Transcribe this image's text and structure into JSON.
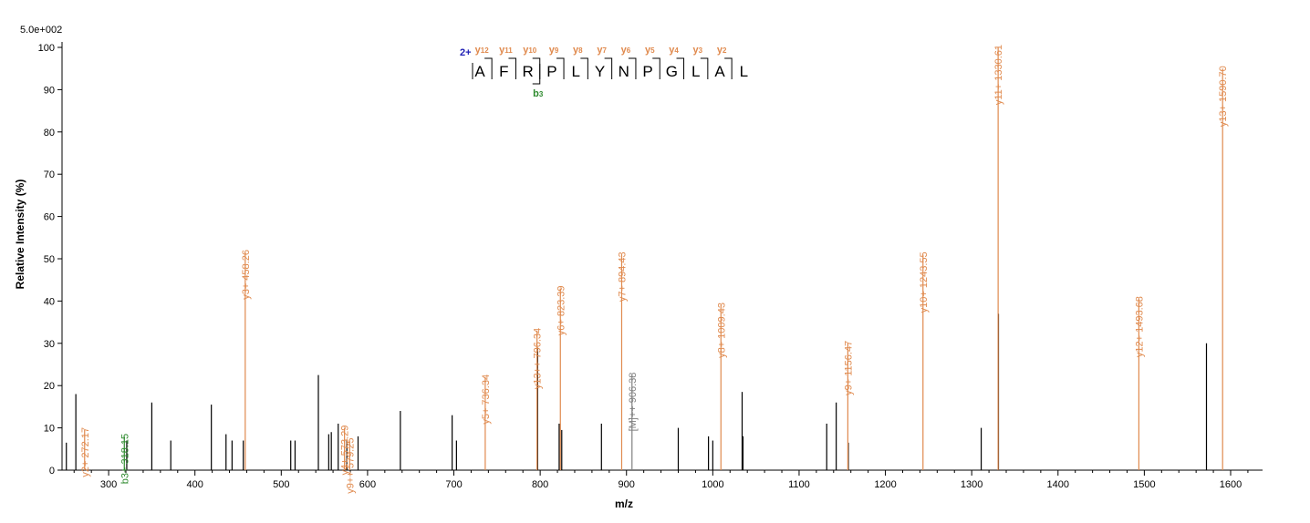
{
  "chart_data": {
    "type": "bar",
    "scale_label": "5.0e+002",
    "xlabel": "m/z",
    "ylabel": "Relative   Intensity (%)",
    "xlim": [
      246,
      1637
    ],
    "ylim": [
      0,
      100
    ],
    "x_ticks": [
      300,
      400,
      500,
      600,
      700,
      800,
      900,
      1000,
      1100,
      1200,
      1300,
      1400,
      1500,
      1600
    ],
    "y_ticks": [
      0,
      10,
      20,
      30,
      40,
      50,
      60,
      70,
      80,
      90,
      100
    ],
    "colors": {
      "y_ion": "#e08a4e",
      "b_ion": "#2d8a2d",
      "precursor": "#808080",
      "unassigned": "#000000",
      "charge": "#1f1fb4"
    },
    "annotated_peaks": [
      {
        "mz": 272.17,
        "intensity": 9.5,
        "label": "y2+ 272.17",
        "ion": "y"
      },
      {
        "mz": 318.15,
        "intensity": 8.0,
        "label": "b3+ 318.15",
        "ion": "b"
      },
      {
        "mz": 458.26,
        "intensity": 51.5,
        "label": "y3+ 458.26",
        "ion": "y"
      },
      {
        "mz": 573.29,
        "intensity": 10.0,
        "label": "y4+ 573.29",
        "ion": "y"
      },
      {
        "mz": 579.25,
        "intensity": 7.0,
        "label": "y9++ 579.25",
        "ion": "y"
      },
      {
        "mz": 736.34,
        "intensity": 22.0,
        "label": "y5+ 736.34",
        "ion": "y"
      },
      {
        "mz": 796.34,
        "intensity": 33.0,
        "label": "y13++ 796.34",
        "ion": "y"
      },
      {
        "mz": 823.39,
        "intensity": 43.0,
        "label": "y6+ 823.39",
        "ion": "y"
      },
      {
        "mz": 894.43,
        "intensity": 51.0,
        "label": "y7+ 894.43",
        "ion": "y"
      },
      {
        "mz": 906.38,
        "intensity": 22.5,
        "label": "[M]++ 906.38",
        "ion": "precursor"
      },
      {
        "mz": 1009.43,
        "intensity": 39.0,
        "label": "y8+ 1009.43",
        "ion": "y"
      },
      {
        "mz": 1156.47,
        "intensity": 30.0,
        "label": "y9+ 1156.47",
        "ion": "y"
      },
      {
        "mz": 1243.55,
        "intensity": 51.0,
        "label": "y10+ 1243.55",
        "ion": "y"
      },
      {
        "mz": 1330.61,
        "intensity": 100.0,
        "label": "y11+ 1330.61",
        "ion": "y"
      },
      {
        "mz": 1493.68,
        "intensity": 40.5,
        "label": "y12+ 1493.68",
        "ion": "y"
      },
      {
        "mz": 1590.7,
        "intensity": 95.0,
        "label": "y13+ 1590.70",
        "ion": "y"
      }
    ],
    "unassigned_peaks": [
      {
        "mz": 251,
        "intensity": 6.5
      },
      {
        "mz": 262,
        "intensity": 18
      },
      {
        "mz": 321,
        "intensity": 7
      },
      {
        "mz": 350,
        "intensity": 16
      },
      {
        "mz": 372,
        "intensity": 7
      },
      {
        "mz": 419,
        "intensity": 15.5
      },
      {
        "mz": 436,
        "intensity": 8.5
      },
      {
        "mz": 443,
        "intensity": 7
      },
      {
        "mz": 456,
        "intensity": 7
      },
      {
        "mz": 511,
        "intensity": 7
      },
      {
        "mz": 516,
        "intensity": 7
      },
      {
        "mz": 543,
        "intensity": 22.5
      },
      {
        "mz": 555,
        "intensity": 8.5
      },
      {
        "mz": 558,
        "intensity": 9
      },
      {
        "mz": 566,
        "intensity": 11
      },
      {
        "mz": 576,
        "intensity": 7
      },
      {
        "mz": 589,
        "intensity": 8
      },
      {
        "mz": 638,
        "intensity": 14
      },
      {
        "mz": 698,
        "intensity": 13
      },
      {
        "mz": 703,
        "intensity": 7
      },
      {
        "mz": 797,
        "intensity": 29
      },
      {
        "mz": 822,
        "intensity": 11
      },
      {
        "mz": 825,
        "intensity": 9.5
      },
      {
        "mz": 871,
        "intensity": 11
      },
      {
        "mz": 960,
        "intensity": 10
      },
      {
        "mz": 995,
        "intensity": 8
      },
      {
        "mz": 1000,
        "intensity": 7
      },
      {
        "mz": 1034,
        "intensity": 18.5
      },
      {
        "mz": 1035,
        "intensity": 8
      },
      {
        "mz": 1132,
        "intensity": 11
      },
      {
        "mz": 1143,
        "intensity": 16
      },
      {
        "mz": 1157,
        "intensity": 6.5
      },
      {
        "mz": 1311,
        "intensity": 10
      },
      {
        "mz": 1331,
        "intensity": 37
      },
      {
        "mz": 1572,
        "intensity": 30
      }
    ]
  },
  "sequence_map": {
    "charge": "2+",
    "residues": [
      "A",
      "F",
      "R",
      "P",
      "L",
      "Y",
      "N",
      "P",
      "G",
      "L",
      "A",
      "L"
    ],
    "y_ions": [
      {
        "name": "y",
        "num": "12",
        "after": 0
      },
      {
        "name": "y",
        "num": "11",
        "after": 1
      },
      {
        "name": "y",
        "num": "10",
        "after": 2
      },
      {
        "name": "y",
        "num": "9",
        "after": 3
      },
      {
        "name": "y",
        "num": "8",
        "after": 4
      },
      {
        "name": "y",
        "num": "7",
        "after": 5
      },
      {
        "name": "y",
        "num": "6",
        "after": 6
      },
      {
        "name": "y",
        "num": "5",
        "after": 7
      },
      {
        "name": "y",
        "num": "4",
        "after": 8
      },
      {
        "name": "y",
        "num": "3",
        "after": 9
      },
      {
        "name": "y",
        "num": "2",
        "after": 10
      }
    ],
    "b_ions": [
      {
        "name": "b",
        "num": "3",
        "after": 2
      }
    ]
  }
}
